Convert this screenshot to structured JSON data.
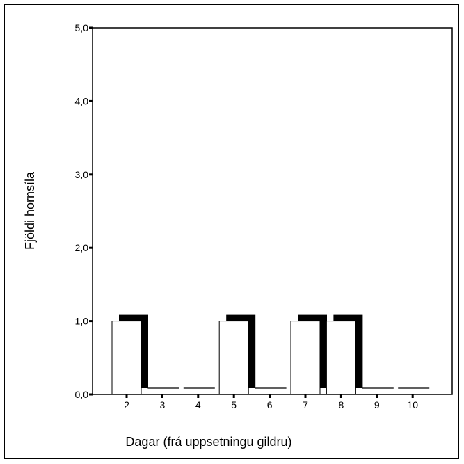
{
  "chart_data": {
    "type": "bar",
    "title": "",
    "xlabel": "Dagar (frá uppsetningu gildru)",
    "ylabel": "Fjöldi hornsíla",
    "categories": [
      "2",
      "3",
      "4",
      "5",
      "6",
      "7",
      "8",
      "9",
      "10"
    ],
    "values": [
      1,
      0,
      0,
      1,
      0,
      1,
      1,
      0,
      0
    ],
    "ylim": [
      0,
      5
    ],
    "yticks": [
      "0,0",
      "1,0",
      "2,0",
      "3,0",
      "4,0",
      "5,0"
    ],
    "grid": false,
    "legend": "none",
    "bar_style": "3d-shadow",
    "colors": {
      "bar_fill": "#ffffff",
      "bar_outline": "#000000",
      "shadow": "#000000",
      "axis": "#000000"
    }
  }
}
